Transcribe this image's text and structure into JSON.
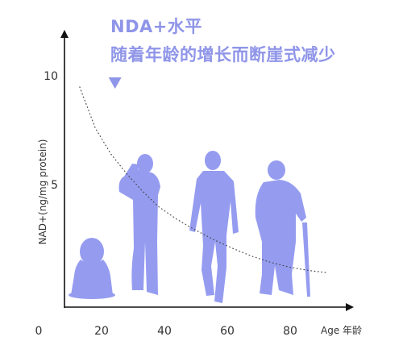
{
  "title_lines": [
    "NDA+水平",
    "随着年龄的增长而断崖式减少"
  ],
  "colors": {
    "accent": "#8f95e8",
    "silhouette": "#959cf0",
    "axis": "#111111",
    "text": "#333333",
    "curve": "#444444"
  },
  "chart_data": {
    "type": "line",
    "title": "NDA+水平 随着年龄的增长而断崖式减少",
    "xlabel": "Age 年龄",
    "ylabel": "NAD+(ng/mg protein)",
    "x_ticks": [
      0,
      20,
      40,
      60,
      80
    ],
    "y_ticks": [
      5,
      10
    ],
    "xlim": [
      0,
      95
    ],
    "ylim": [
      0,
      11
    ],
    "series": [
      {
        "x": [
          13,
          18,
          23,
          28,
          33,
          38,
          44,
          50,
          56,
          62,
          68,
          74,
          80,
          86,
          92
        ],
        "y": [
          9.5,
          7.6,
          6.4,
          5.5,
          4.7,
          4.0,
          3.4,
          2.9,
          2.45,
          2.05,
          1.7,
          1.42,
          1.2,
          1.05,
          0.95
        ]
      }
    ],
    "annotations": [
      {
        "type": "marker",
        "shape": "down-triangle",
        "x": 23,
        "y": 10
      }
    ],
    "figures": [
      {
        "icon": "child-icon",
        "x_center": 15
      },
      {
        "icon": "young-man-icon",
        "x_center": 33
      },
      {
        "icon": "adult-man-icon",
        "x_center": 55
      },
      {
        "icon": "elderly-man-icon",
        "x_center": 77
      }
    ],
    "grid": false,
    "legend": "none"
  }
}
